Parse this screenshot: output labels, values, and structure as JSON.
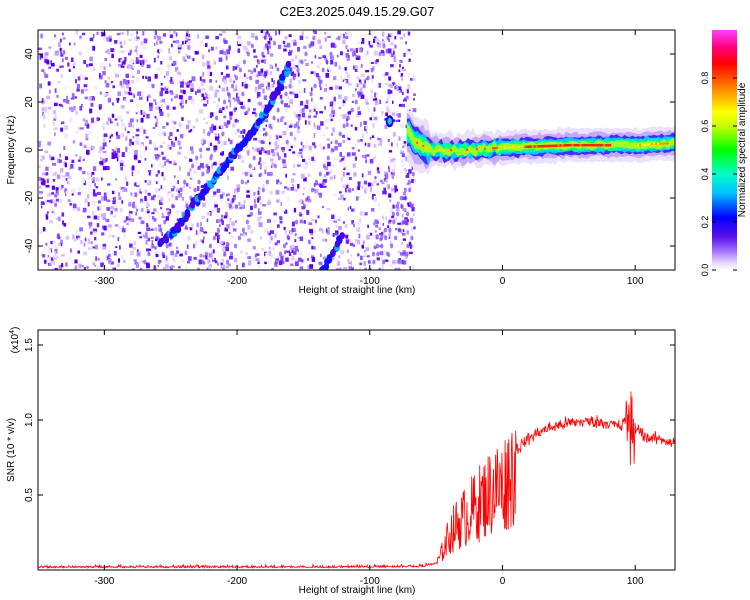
{
  "title": "C2E3.2025.049.15.29.G07",
  "chart_data": [
    {
      "type": "heatmap",
      "xlabel": "Height of straight line (km)",
      "ylabel": "Frequency (Hz)",
      "xlim": [
        -350,
        130
      ],
      "ylim": [
        -50,
        50
      ],
      "x_ticks": [
        -300,
        -200,
        -100,
        0,
        100
      ],
      "y_ticks": [
        -40,
        -20,
        0,
        20,
        40
      ],
      "colorbar": {
        "label": "Normalized spectral amplitude",
        "range": [
          0.0,
          1.0
        ],
        "ticks": [
          "0.0",
          "0.2",
          "0.4",
          "0.6",
          "0.8"
        ],
        "colormap": [
          "#ffffff",
          "#e8d9ff",
          "#b48cff",
          "#7f3cff",
          "#4b00d9",
          "#0000ff",
          "#00bfff",
          "#00ffc0",
          "#00ff00",
          "#c8ff00",
          "#ffff00",
          "#ff8000",
          "#ff0000",
          "#ff0080",
          "#ff40ff"
        ]
      },
      "features": [
        {
          "name": "noise-region",
          "x_range": [
            -350,
            -67
          ],
          "intensity": 0.15
        },
        {
          "name": "diagonal-streak-main",
          "points": [
            [
              -258,
              -39
            ],
            [
              -245,
              -33
            ],
            [
              -232,
              -22
            ],
            [
              -218,
              -13
            ],
            [
              -205,
              -3
            ],
            [
              -192,
              5
            ],
            [
              -180,
              14
            ],
            [
              -170,
              24
            ],
            [
              -160,
              37
            ]
          ],
          "intensity": 0.3
        },
        {
          "name": "diagonal-streak-lower",
          "points": [
            [
              -135,
              -50
            ],
            [
              -120,
              -35
            ]
          ],
          "intensity": 0.25
        },
        {
          "name": "isolated-blob",
          "points": [
            [
              -85,
              12
            ]
          ],
          "intensity": 0.35
        },
        {
          "name": "carrier-line",
          "points": [
            [
              -72,
              8
            ],
            [
              -65,
              3
            ],
            [
              -55,
              0
            ],
            [
              -30,
              0
            ],
            [
              0,
              1
            ],
            [
              50,
              2
            ],
            [
              100,
              2
            ],
            [
              130,
              3
            ]
          ],
          "intensity": 0.95
        }
      ]
    },
    {
      "type": "line",
      "xlabel": "Height of straight line (km)",
      "ylabel": "SNR (10 * v/v)",
      "y_multiplier": "(x10",
      "y_multiplier_exp": "4",
      "y_multiplier_close": ")",
      "xlim": [
        -350,
        130
      ],
      "ylim": [
        0,
        16000
      ],
      "x_ticks": [
        -300,
        -200,
        -100,
        0,
        100
      ],
      "y_ticks": [
        5000,
        10000,
        15000
      ],
      "y_tick_labels": [
        "0.5",
        "1.0",
        "1.5"
      ],
      "series": [
        {
          "color": "#ff0000",
          "x": [
            -350,
            -300,
            -250,
            -200,
            -150,
            -100,
            -60,
            -50,
            -45,
            -40,
            -35,
            -30,
            -25,
            -20,
            -15,
            -10,
            -5,
            0,
            5,
            10,
            20,
            30,
            40,
            50,
            60,
            70,
            80,
            90,
            95,
            100,
            110,
            120,
            130
          ],
          "y": [
            150,
            150,
            150,
            150,
            150,
            150,
            200,
            400,
            1500,
            2800,
            3500,
            4000,
            4500,
            5000,
            5500,
            6000,
            6500,
            6500,
            7500,
            8000,
            8800,
            9300,
            9600,
            9800,
            9900,
            9900,
            9800,
            9500,
            11500,
            9500,
            8800,
            8700,
            8500
          ]
        }
      ]
    }
  ]
}
